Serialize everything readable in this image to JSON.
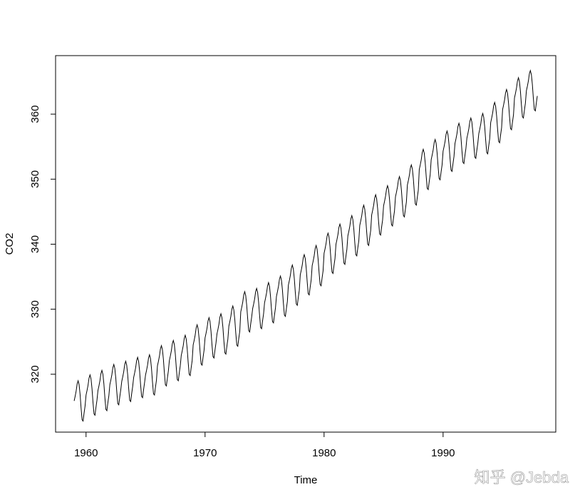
{
  "chart_data": {
    "type": "line",
    "x_label": "Time",
    "y_label": "CO2",
    "watermark": "知乎 @Jebda",
    "color": "#000000",
    "xlim": [
      1957.44,
      1999.47
    ],
    "xticks": [
      1960,
      1970,
      1980,
      1990
    ],
    "ylim": [
      311.1,
      369.0
    ],
    "yticks": [
      320,
      330,
      340,
      350,
      360
    ],
    "x": [
      1959,
      1959.083,
      1959.167,
      1959.25,
      1959.333,
      1959.417,
      1959.5,
      1959.583,
      1959.667,
      1959.75,
      1959.833,
      1959.917,
      1960,
      1960.083,
      1960.167,
      1960.25,
      1960.333,
      1960.417,
      1960.5,
      1960.583,
      1960.667,
      1960.75,
      1960.833,
      1960.917,
      1961,
      1961.083,
      1961.167,
      1961.25,
      1961.333,
      1961.417,
      1961.5,
      1961.583,
      1961.667,
      1961.75,
      1961.833,
      1961.917,
      1962,
      1962.083,
      1962.167,
      1962.25,
      1962.333,
      1962.417,
      1962.5,
      1962.583,
      1962.667,
      1962.75,
      1962.833,
      1962.917,
      1963,
      1963.083,
      1963.167,
      1963.25,
      1963.333,
      1963.417,
      1963.5,
      1963.583,
      1963.667,
      1963.75,
      1963.833,
      1963.917,
      1964,
      1964.083,
      1964.167,
      1964.25,
      1964.333,
      1964.417,
      1964.5,
      1964.583,
      1964.667,
      1964.75,
      1964.833,
      1964.917,
      1965,
      1965.083,
      1965.167,
      1965.25,
      1965.333,
      1965.417,
      1965.5,
      1965.583,
      1965.667,
      1965.75,
      1965.833,
      1965.917,
      1966,
      1966.083,
      1966.167,
      1966.25,
      1966.333,
      1966.417,
      1966.5,
      1966.583,
      1966.667,
      1966.75,
      1966.833,
      1966.917,
      1967,
      1967.083,
      1967.167,
      1967.25,
      1967.333,
      1967.417,
      1967.5,
      1967.583,
      1967.667,
      1967.75,
      1967.833,
      1967.917,
      1968,
      1968.083,
      1968.167,
      1968.25,
      1968.333,
      1968.417,
      1968.5,
      1968.583,
      1968.667,
      1968.75,
      1968.833,
      1968.917,
      1969,
      1969.083,
      1969.167,
      1969.25,
      1969.333,
      1969.417,
      1969.5,
      1969.583,
      1969.667,
      1969.75,
      1969.833,
      1969.917,
      1970,
      1970.083,
      1970.167,
      1970.25,
      1970.333,
      1970.417,
      1970.5,
      1970.583,
      1970.667,
      1970.75,
      1970.833,
      1970.917,
      1971,
      1971.083,
      1971.167,
      1971.25,
      1971.333,
      1971.417,
      1971.5,
      1971.583,
      1971.667,
      1971.75,
      1971.833,
      1971.917,
      1972,
      1972.083,
      1972.167,
      1972.25,
      1972.333,
      1972.417,
      1972.5,
      1972.583,
      1972.667,
      1972.75,
      1972.833,
      1972.917,
      1973,
      1973.083,
      1973.167,
      1973.25,
      1973.333,
      1973.417,
      1973.5,
      1973.583,
      1973.667,
      1973.75,
      1973.833,
      1973.917,
      1974,
      1974.083,
      1974.167,
      1974.25,
      1974.333,
      1974.417,
      1974.5,
      1974.583,
      1974.667,
      1974.75,
      1974.833,
      1974.917,
      1975,
      1975.083,
      1975.167,
      1975.25,
      1975.333,
      1975.417,
      1975.5,
      1975.583,
      1975.667,
      1975.75,
      1975.833,
      1975.917,
      1976,
      1976.083,
      1976.167,
      1976.25,
      1976.333,
      1976.417,
      1976.5,
      1976.583,
      1976.667,
      1976.75,
      1976.833,
      1976.917,
      1977,
      1977.083,
      1977.167,
      1977.25,
      1977.333,
      1977.417,
      1977.5,
      1977.583,
      1977.667,
      1977.75,
      1977.833,
      1977.917,
      1978,
      1978.083,
      1978.167,
      1978.25,
      1978.333,
      1978.417,
      1978.5,
      1978.583,
      1978.667,
      1978.75,
      1978.833,
      1978.917,
      1979,
      1979.083,
      1979.167,
      1979.25,
      1979.333,
      1979.417,
      1979.5,
      1979.583,
      1979.667,
      1979.75,
      1979.833,
      1979.917,
      1980,
      1980.083,
      1980.167,
      1980.25,
      1980.333,
      1980.417,
      1980.5,
      1980.583,
      1980.667,
      1980.75,
      1980.833,
      1980.917,
      1981,
      1981.083,
      1981.167,
      1981.25,
      1981.333,
      1981.417,
      1981.5,
      1981.583,
      1981.667,
      1981.75,
      1981.833,
      1981.917,
      1982,
      1982.083,
      1982.167,
      1982.25,
      1982.333,
      1982.417,
      1982.5,
      1982.583,
      1982.667,
      1982.75,
      1982.833,
      1982.917,
      1983,
      1983.083,
      1983.167,
      1983.25,
      1983.333,
      1983.417,
      1983.5,
      1983.583,
      1983.667,
      1983.75,
      1983.833,
      1983.917,
      1984,
      1984.083,
      1984.167,
      1984.25,
      1984.333,
      1984.417,
      1984.5,
      1984.583,
      1984.667,
      1984.75,
      1984.833,
      1984.917,
      1985,
      1985.083,
      1985.167,
      1985.25,
      1985.333,
      1985.417,
      1985.5,
      1985.583,
      1985.667,
      1985.75,
      1985.833,
      1985.917,
      1986,
      1986.083,
      1986.167,
      1986.25,
      1986.333,
      1986.417,
      1986.5,
      1986.583,
      1986.667,
      1986.75,
      1986.833,
      1986.917,
      1987,
      1987.083,
      1987.167,
      1987.25,
      1987.333,
      1987.417,
      1987.5,
      1987.583,
      1987.667,
      1987.75,
      1987.833,
      1987.917,
      1988,
      1988.083,
      1988.167,
      1988.25,
      1988.333,
      1988.417,
      1988.5,
      1988.583,
      1988.667,
      1988.75,
      1988.833,
      1988.917,
      1989,
      1989.083,
      1989.167,
      1989.25,
      1989.333,
      1989.417,
      1989.5,
      1989.583,
      1989.667,
      1989.75,
      1989.833,
      1989.917,
      1990,
      1990.083,
      1990.167,
      1990.25,
      1990.333,
      1990.417,
      1990.5,
      1990.583,
      1990.667,
      1990.75,
      1990.833,
      1990.917,
      1991,
      1991.083,
      1991.167,
      1991.25,
      1991.333,
      1991.417,
      1991.5,
      1991.583,
      1991.667,
      1991.75,
      1991.833,
      1991.917,
      1992,
      1992.083,
      1992.167,
      1992.25,
      1992.333,
      1992.417,
      1992.5,
      1992.583,
      1992.667,
      1992.75,
      1992.833,
      1992.917,
      1993,
      1993.083,
      1993.167,
      1993.25,
      1993.333,
      1993.417,
      1993.5,
      1993.583,
      1993.667,
      1993.75,
      1993.833,
      1993.917,
      1994,
      1994.083,
      1994.167,
      1994.25,
      1994.333,
      1994.417,
      1994.5,
      1994.583,
      1994.667,
      1994.75,
      1994.833,
      1994.917,
      1995,
      1995.083,
      1995.167,
      1995.25,
      1995.333,
      1995.417,
      1995.5,
      1995.583,
      1995.667,
      1995.75,
      1995.833,
      1995.917,
      1996,
      1996.083,
      1996.167,
      1996.25,
      1996.333,
      1996.417,
      1996.5,
      1996.583,
      1996.667,
      1996.75,
      1996.833,
      1996.917,
      1997,
      1997.083,
      1997.167,
      1997.25,
      1997.333,
      1997.417,
      1997.5,
      1997.583,
      1997.667,
      1997.75,
      1997.833,
      1997.917
    ],
    "values": [
      315.9,
      316.6,
      317.4,
      318.5,
      319.0,
      318.4,
      316.9,
      314.8,
      313.0,
      312.8,
      314.0,
      315.1,
      316.8,
      317.5,
      318.3,
      319.4,
      319.9,
      319.3,
      317.8,
      315.7,
      313.9,
      313.7,
      314.9,
      316.0,
      317.5,
      318.2,
      319.0,
      320.1,
      320.6,
      320.0,
      318.5,
      316.4,
      314.6,
      314.4,
      315.6,
      316.7,
      318.4,
      319.1,
      319.9,
      321.0,
      321.5,
      320.9,
      319.4,
      317.3,
      315.5,
      315.3,
      316.5,
      317.6,
      318.9,
      319.6,
      320.4,
      321.5,
      322.0,
      321.4,
      319.9,
      317.8,
      316.0,
      315.8,
      317.0,
      318.1,
      319.5,
      320.2,
      321.0,
      322.1,
      322.6,
      322.0,
      320.5,
      318.4,
      316.6,
      316.4,
      317.6,
      318.7,
      319.9,
      320.6,
      321.4,
      322.5,
      323.0,
      322.4,
      320.9,
      318.8,
      317.0,
      316.8,
      318.0,
      319.1,
      321.3,
      322.0,
      322.8,
      323.9,
      324.4,
      323.8,
      322.3,
      320.2,
      318.4,
      318.2,
      319.4,
      320.5,
      322.1,
      322.8,
      323.6,
      324.7,
      325.2,
      324.6,
      323.1,
      321.0,
      319.2,
      319.0,
      320.2,
      321.3,
      322.9,
      323.6,
      324.4,
      325.5,
      326.0,
      325.4,
      323.9,
      321.8,
      320.0,
      319.8,
      321.0,
      322.1,
      324.5,
      325.2,
      326.0,
      327.1,
      327.6,
      327.0,
      325.5,
      323.4,
      321.6,
      321.4,
      322.6,
      323.7,
      325.6,
      326.3,
      327.1,
      328.2,
      328.7,
      328.1,
      326.6,
      324.5,
      322.7,
      322.5,
      323.7,
      324.8,
      326.2,
      326.9,
      327.7,
      328.8,
      329.3,
      328.7,
      327.2,
      325.1,
      323.3,
      323.1,
      324.3,
      325.4,
      327.4,
      328.1,
      328.9,
      330.0,
      330.5,
      329.9,
      328.4,
      326.3,
      324.5,
      324.3,
      325.5,
      326.6,
      329.6,
      330.3,
      331.1,
      332.2,
      332.7,
      332.1,
      330.6,
      328.5,
      326.7,
      326.5,
      327.7,
      328.8,
      330.1,
      330.8,
      331.6,
      332.7,
      333.2,
      332.6,
      331.1,
      329.0,
      327.2,
      327.0,
      328.2,
      329.3,
      331.0,
      331.7,
      332.5,
      333.6,
      334.1,
      333.5,
      332.0,
      329.9,
      328.1,
      327.9,
      329.1,
      330.2,
      332.0,
      332.7,
      333.5,
      334.6,
      335.1,
      334.5,
      333.0,
      330.9,
      329.1,
      328.9,
      330.1,
      331.2,
      333.7,
      334.4,
      335.2,
      336.3,
      336.8,
      336.2,
      334.7,
      332.6,
      330.8,
      330.6,
      331.8,
      332.9,
      335.3,
      336.0,
      336.8,
      337.9,
      338.4,
      337.8,
      336.3,
      334.2,
      332.4,
      332.2,
      333.4,
      334.5,
      336.7,
      337.4,
      338.2,
      339.3,
      339.8,
      339.2,
      337.7,
      335.6,
      333.8,
      333.6,
      334.8,
      335.9,
      338.6,
      339.3,
      340.1,
      341.2,
      341.7,
      341.1,
      339.6,
      337.5,
      335.7,
      335.5,
      336.7,
      337.8,
      340.0,
      340.7,
      341.5,
      342.6,
      343.1,
      342.5,
      341.0,
      338.9,
      337.1,
      336.9,
      338.1,
      339.2,
      341.3,
      342.0,
      342.8,
      343.9,
      344.4,
      343.8,
      342.3,
      340.2,
      338.4,
      338.2,
      339.4,
      340.5,
      342.9,
      343.6,
      344.4,
      345.5,
      346.0,
      345.4,
      343.9,
      341.8,
      340.0,
      339.8,
      341.0,
      342.1,
      344.5,
      345.2,
      346.0,
      347.1,
      347.6,
      347.0,
      345.5,
      343.4,
      341.6,
      341.4,
      342.6,
      343.7,
      345.9,
      346.6,
      347.4,
      348.5,
      349.0,
      348.4,
      346.9,
      344.8,
      343.0,
      342.8,
      344.0,
      345.1,
      347.3,
      348.0,
      348.8,
      349.9,
      350.4,
      349.8,
      348.3,
      346.2,
      344.4,
      344.2,
      345.4,
      346.5,
      349.1,
      349.8,
      350.6,
      351.7,
      352.2,
      351.6,
      350.1,
      348.0,
      346.2,
      346.0,
      347.2,
      348.3,
      351.5,
      352.2,
      353.0,
      354.1,
      354.6,
      354.0,
      352.5,
      350.4,
      348.6,
      348.4,
      349.6,
      350.7,
      353.0,
      353.7,
      354.5,
      355.6,
      356.1,
      355.5,
      354.0,
      351.9,
      350.1,
      349.9,
      351.1,
      352.2,
      354.3,
      355.0,
      355.8,
      356.9,
      357.4,
      356.8,
      355.3,
      353.2,
      351.4,
      351.2,
      352.4,
      353.5,
      355.5,
      356.2,
      357.0,
      358.1,
      358.6,
      358.0,
      356.5,
      354.4,
      352.6,
      352.4,
      353.6,
      354.7,
      356.3,
      357.0,
      357.8,
      358.9,
      359.4,
      358.8,
      357.3,
      355.2,
      353.4,
      353.2,
      354.4,
      355.5,
      357.0,
      357.7,
      358.5,
      359.6,
      360.1,
      359.5,
      358.0,
      355.9,
      354.1,
      353.9,
      355.1,
      356.2,
      358.7,
      359.4,
      360.2,
      361.3,
      361.8,
      361.2,
      359.7,
      357.6,
      355.8,
      355.6,
      356.8,
      357.9,
      360.7,
      361.4,
      362.2,
      363.3,
      363.8,
      363.2,
      361.7,
      359.6,
      357.8,
      357.6,
      358.8,
      359.9,
      362.5,
      363.2,
      364.0,
      365.1,
      365.6,
      365.0,
      363.5,
      361.4,
      359.6,
      359.4,
      360.6,
      361.7,
      363.6,
      364.3,
      365.1,
      366.2,
      366.7,
      366.1,
      364.6,
      362.5,
      360.7,
      360.5,
      361.7,
      362.8
    ]
  }
}
